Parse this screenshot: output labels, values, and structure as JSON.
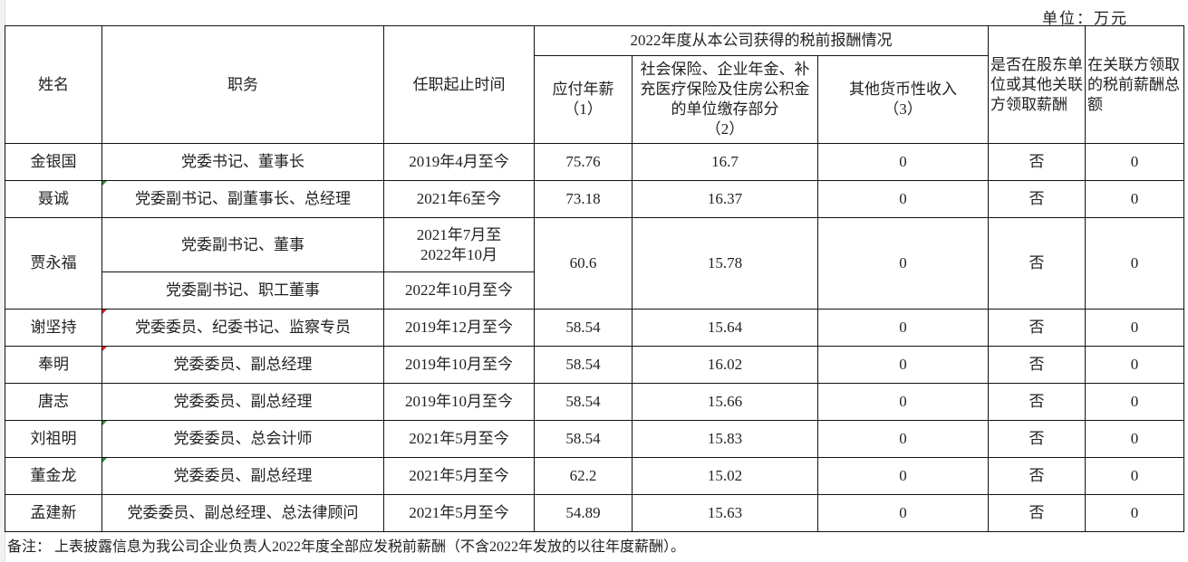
{
  "unit_label": "单位：万元",
  "header": {
    "name": "姓名",
    "position": "职务",
    "term": "任职起止时间",
    "group": "2022年度从本公司获得的税前报酬情况",
    "salary": "应付年薪\n（1）",
    "insurance": "社会保险、企业年金、补充医疗保险及住房公积金的单位缴存部分\n（2）",
    "other": "其他货币性收入\n（3）",
    "related": "是否在股东单位或其他关联方领取薪酬",
    "related_total": "在关联方领取的税前薪酬总额"
  },
  "rows": [
    {
      "name": "金银国",
      "position": "党委书记、董事长",
      "term": "2019年4月至今",
      "salary": "75.76",
      "insurance": "16.7",
      "other": "0",
      "related": "否",
      "related_total": "0"
    },
    {
      "name": "聂诚",
      "position": "党委副书记、副董事长、总经理",
      "term": "2021年6至今",
      "salary": "73.18",
      "insurance": "16.37",
      "other": "0",
      "related": "否",
      "related_total": "0"
    },
    {
      "name": "贾永福",
      "position": "党委副书记、董事",
      "term": "2021年7月至2022年10月",
      "position2": "党委副书记、职工董事",
      "term2": "2022年10月至今",
      "salary": "60.6",
      "insurance": "15.78",
      "other": "0",
      "related": "否",
      "related_total": "0"
    },
    {
      "name": "谢坚持",
      "position": "党委委员、纪委书记、监察专员",
      "term": "2019年12月至今",
      "salary": "58.54",
      "insurance": "15.64",
      "other": "0",
      "related": "否",
      "related_total": "0"
    },
    {
      "name": "奉明",
      "position": "党委委员、副总经理",
      "term": "2019年10月至今",
      "salary": "58.54",
      "insurance": "16.02",
      "other": "0",
      "related": "否",
      "related_total": "0"
    },
    {
      "name": "唐志",
      "position": "党委委员、副总经理",
      "term": "2019年10月至今",
      "salary": "58.54",
      "insurance": "15.66",
      "other": "0",
      "related": "否",
      "related_total": "0"
    },
    {
      "name": "刘祖明",
      "position": "党委委员、总会计师",
      "term": "2021年5月至今",
      "salary": "58.54",
      "insurance": "15.83",
      "other": "0",
      "related": "否",
      "related_total": "0"
    },
    {
      "name": "董金龙",
      "position": "党委委员、副总经理",
      "term": "2021年5月至今",
      "salary": "62.2",
      "insurance": "15.02",
      "other": "0",
      "related": "否",
      "related_total": "0"
    },
    {
      "name": "孟建新",
      "position": "党委委员、副总经理、总法律顾问",
      "term": "2021年5月至今",
      "salary": "54.89",
      "insurance": "15.63",
      "other": "0",
      "related": "否",
      "related_total": "0"
    }
  ],
  "note": "备注：  上表披露信息为我公司企业负责人2022年度全部应发税前薪酬（不含2022年发放的以往年度薪酬）。",
  "colors": {
    "comment_marker": "#d22222",
    "note_marker": "#2a8a2a"
  }
}
